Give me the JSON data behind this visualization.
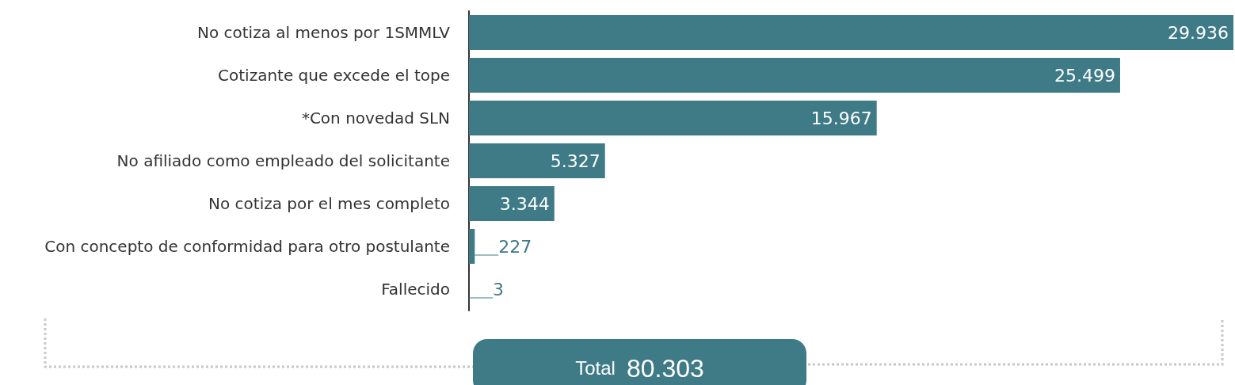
{
  "chart_data": {
    "type": "bar",
    "orientation": "horizontal",
    "categories": [
      "No cotiza al menos por 1SMMLV",
      "Cotizante que excede el tope",
      "*Con novedad SLN",
      "No afiliado como empleado del solicitante",
      "No cotiza por el mes completo",
      "Con concepto de conformidad para otro postulante",
      "Fallecido"
    ],
    "values": [
      29936,
      25499,
      15967,
      5327,
      3344,
      227,
      3
    ],
    "value_labels": [
      "29.936",
      "25.499",
      "15.967",
      "5.327",
      "3.344",
      "227",
      "3"
    ],
    "color": "#3f7a87",
    "annotations": [
      "Total",
      "80.303"
    ]
  }
}
